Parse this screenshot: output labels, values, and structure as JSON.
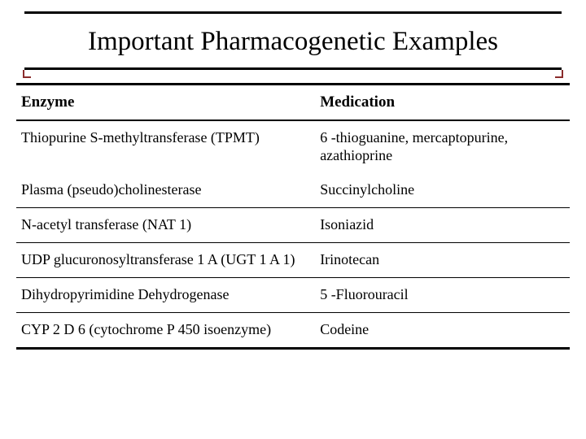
{
  "title": "Important Pharmacogenetic Examples",
  "table": {
    "columns": [
      "Enzyme",
      "Medication"
    ],
    "rows": [
      {
        "enzyme": "Thiopurine S-methyltransferase (TPMT)",
        "medication": "6 -thioguanine, mercaptopurine, azathioprine",
        "sep": false
      },
      {
        "enzyme": "Plasma (pseudo)cholinesterase",
        "medication": "Succinylcholine",
        "sep": true
      },
      {
        "enzyme": "N-acetyl transferase (NAT 1)",
        "medication": "Isoniazid",
        "sep": true
      },
      {
        "enzyme": "UDP glucuronosyltransferase 1 A (UGT 1 A 1)",
        "medication": "Irinotecan",
        "sep": true
      },
      {
        "enzyme": "Dihydropyrimidine Dehydrogenase",
        "medication": "5 -Fluorouracil",
        "sep": true
      },
      {
        "enzyme": "CYP 2 D 6 (cytochrome P 450 isoenzyme)",
        "medication": "Codeine",
        "sep": false,
        "last": true
      }
    ],
    "header_fontsize": 19,
    "cell_fontsize": 18,
    "border_color": "#000000",
    "col_left_width_pct": 54
  },
  "colors": {
    "background": "#ffffff",
    "text": "#000000",
    "accent_corner": "#8a2c2c"
  },
  "typography": {
    "title_fontsize": 33,
    "font_family": "Times New Roman"
  }
}
